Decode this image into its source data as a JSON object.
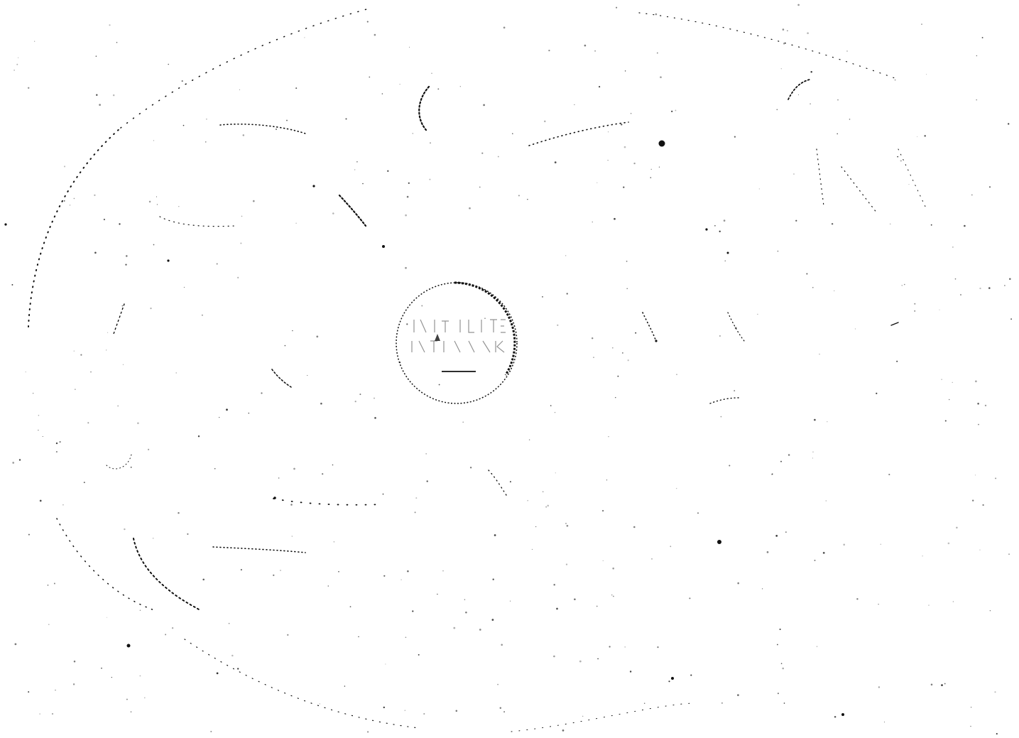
{
  "document": {
    "kind": "faint scanned disc image with speckle noise",
    "ink_color": "#111111",
    "background_color": "#ffffff"
  },
  "stamp": {
    "text_line_1": "",
    "text_line_2": "",
    "has_underline": true
  }
}
